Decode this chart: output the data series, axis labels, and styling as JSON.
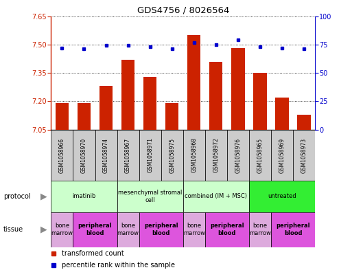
{
  "title": "GDS4756 / 8026564",
  "samples": [
    "GSM1058966",
    "GSM1058970",
    "GSM1058974",
    "GSM1058967",
    "GSM1058971",
    "GSM1058975",
    "GSM1058968",
    "GSM1058972",
    "GSM1058976",
    "GSM1058965",
    "GSM1058969",
    "GSM1058973"
  ],
  "bar_values": [
    7.19,
    7.19,
    7.28,
    7.42,
    7.33,
    7.19,
    7.55,
    7.41,
    7.48,
    7.35,
    7.22,
    7.13
  ],
  "dot_values": [
    72,
    71,
    74,
    74,
    73,
    71,
    77,
    75,
    79,
    73,
    72,
    71
  ],
  "ylim_left": [
    7.05,
    7.65
  ],
  "ylim_right": [
    0,
    100
  ],
  "yticks_left": [
    7.05,
    7.2,
    7.35,
    7.5,
    7.65
  ],
  "yticks_right": [
    0,
    25,
    50,
    75,
    100
  ],
  "bar_color": "#cc2200",
  "dot_color": "#0000cc",
  "protocols": [
    {
      "label": "imatinib",
      "start": 0,
      "end": 3,
      "color": "#ccffcc"
    },
    {
      "label": "mesenchymal stromal\ncell",
      "start": 3,
      "end": 6,
      "color": "#ccffcc"
    },
    {
      "label": "combined (IM + MSC)",
      "start": 6,
      "end": 9,
      "color": "#ccffcc"
    },
    {
      "label": "untreated",
      "start": 9,
      "end": 12,
      "color": "#33ee33"
    }
  ],
  "tissues": [
    {
      "label": "bone\nmarrow",
      "start": 0,
      "end": 1,
      "color": "#ddaadd",
      "bold": false
    },
    {
      "label": "peripheral\nblood",
      "start": 1,
      "end": 3,
      "color": "#dd55dd",
      "bold": true
    },
    {
      "label": "bone\nmarrow",
      "start": 3,
      "end": 4,
      "color": "#ddaadd",
      "bold": false
    },
    {
      "label": "peripheral\nblood",
      "start": 4,
      "end": 6,
      "color": "#dd55dd",
      "bold": true
    },
    {
      "label": "bone\nmarrow",
      "start": 6,
      "end": 7,
      "color": "#ddaadd",
      "bold": false
    },
    {
      "label": "peripheral\nblood",
      "start": 7,
      "end": 9,
      "color": "#dd55dd",
      "bold": true
    },
    {
      "label": "bone\nmarrow",
      "start": 9,
      "end": 10,
      "color": "#ddaadd",
      "bold": false
    },
    {
      "label": "peripheral\nblood",
      "start": 10,
      "end": 12,
      "color": "#dd55dd",
      "bold": true
    }
  ],
  "legend_items": [
    {
      "label": "transformed count",
      "color": "#cc2200"
    },
    {
      "label": "percentile rank within the sample",
      "color": "#0000cc"
    }
  ],
  "sample_bg_color": "#cccccc",
  "label_color": "#888888",
  "arrow_color": "#888888",
  "fig_width": 5.13,
  "fig_height": 3.93,
  "dpi": 100
}
